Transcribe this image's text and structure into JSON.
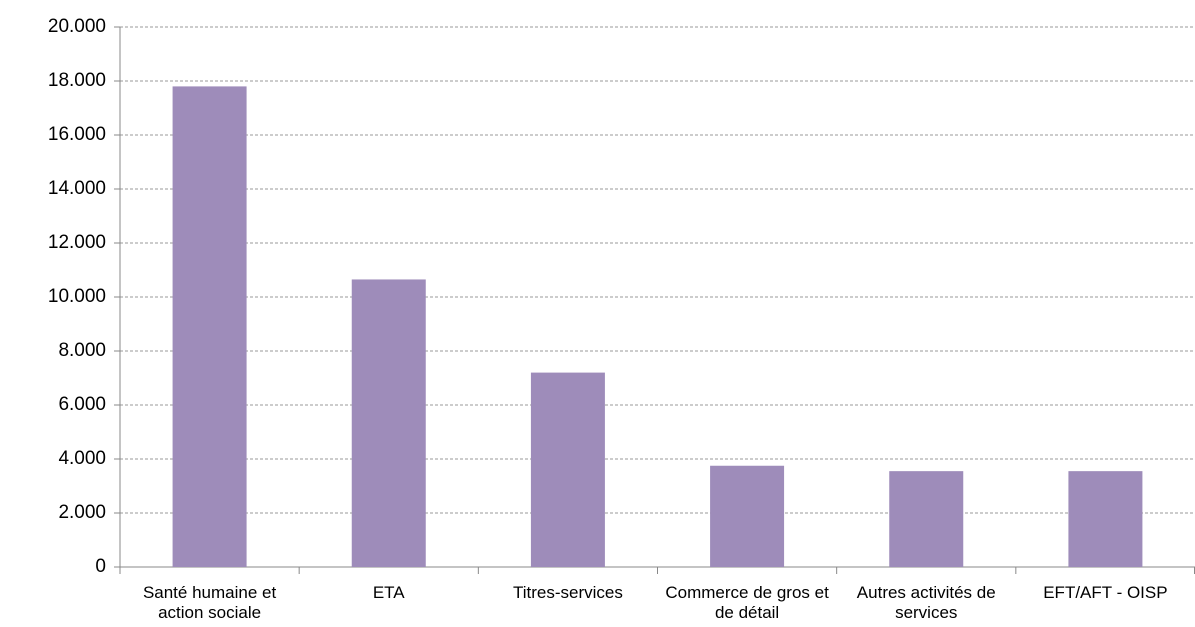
{
  "chart_data": {
    "type": "bar",
    "categories": [
      "Santé humaine et action sociale",
      "ETA",
      "Titres-services",
      "Commerce de gros et de détail",
      "Autres activités de services",
      "EFT/AFT - OISP"
    ],
    "values": [
      17800,
      10650,
      7200,
      3750,
      3550,
      3550
    ],
    "color": "#9e8cba",
    "ylim": [
      0,
      20000
    ],
    "yticks": [
      0,
      {
        "value": 2000,
        "label": "2.000"
      },
      {
        "value": 4000,
        "label": "4.000"
      },
      {
        "value": 6000,
        "label": "6.000"
      },
      {
        "value": 8000,
        "label": "8.000"
      },
      {
        "value": 10000,
        "label": "10.000"
      },
      {
        "value": 12000,
        "label": "12.000"
      },
      {
        "value": 14000,
        "label": "14.000"
      },
      {
        "value": 16000,
        "label": "16.000"
      },
      {
        "value": 18000,
        "label": "18.000"
      },
      {
        "value": 20000,
        "label": "20.000"
      }
    ],
    "grid": true
  }
}
